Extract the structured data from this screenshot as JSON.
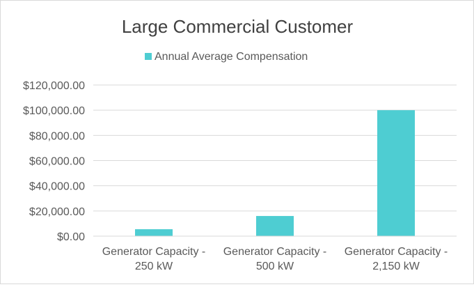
{
  "chart_data": {
    "type": "bar",
    "title": "Large Commercial Customer",
    "categories": [
      [
        "Generator Capacity -",
        "250 kW"
      ],
      [
        "Generator Capacity -",
        "500 kW"
      ],
      [
        "Generator Capacity -",
        "2,150 kW"
      ]
    ],
    "series": [
      {
        "name": "Annual Average Compensation",
        "values": [
          5500,
          16000,
          100000
        ]
      }
    ],
    "ylim": [
      0,
      120000
    ],
    "yticks": [
      0,
      20000,
      40000,
      60000,
      80000,
      100000,
      120000
    ],
    "ytick_labels": [
      "$0.00",
      "$20,000.00",
      "$40,000.00",
      "$60,000.00",
      "$80,000.00",
      "$100,000.00",
      "$120,000.00"
    ],
    "grid": true,
    "legend": "top",
    "xlabel": "",
    "ylabel": "",
    "colors": {
      "bar": "#4ecdd2",
      "grid": "#d9d9d9",
      "text": "#595959",
      "title": "#404040"
    }
  }
}
